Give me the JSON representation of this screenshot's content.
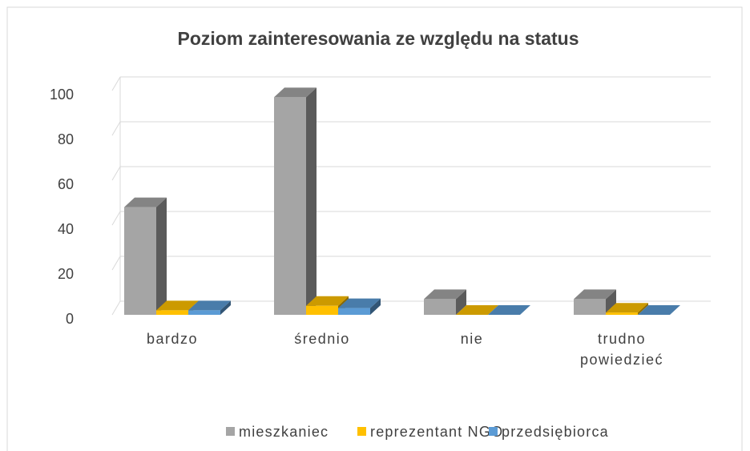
{
  "chart_data": {
    "type": "bar3d",
    "title": "Poziom zainteresowania ze względu na status",
    "categories": [
      "bardzo",
      "średnio",
      "nie",
      "trudno powiedzieć"
    ],
    "series": [
      {
        "name": "mieszkaniec",
        "color": "#a5a5a5",
        "values": [
          48,
          97,
          7,
          7
        ]
      },
      {
        "name": "reprezentant NGO",
        "color": "#ffc000",
        "values": [
          2,
          4,
          0,
          1
        ]
      },
      {
        "name": "przedsiębiorca",
        "color": "#5b9bd5",
        "values": [
          2,
          3,
          0,
          0
        ]
      }
    ],
    "ylim": [
      0,
      100
    ],
    "yticks": [
      0,
      20,
      40,
      60,
      80,
      100
    ],
    "grid": true,
    "legend": "bottom"
  }
}
